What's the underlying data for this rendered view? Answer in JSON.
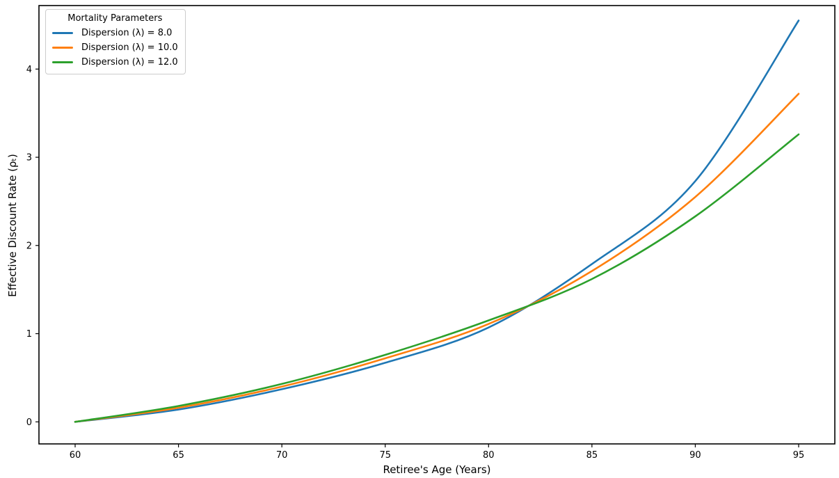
{
  "chart_data": {
    "type": "line",
    "title": "",
    "xlabel": "Retiree's Age (Years)",
    "ylabel": "Effective Discount Rate (ρₜ)",
    "xlim": [
      58.25,
      96.75
    ],
    "ylim": [
      -0.25,
      4.72
    ],
    "x_ticks": [
      60,
      65,
      70,
      75,
      80,
      85,
      90,
      95
    ],
    "y_ticks": [
      0,
      1,
      2,
      3,
      4
    ],
    "grid": false,
    "legend": {
      "title": "Mortality Parameters",
      "position": "upper-left"
    },
    "x": [
      60,
      65,
      70,
      75,
      80,
      85,
      90,
      95
    ],
    "series": [
      {
        "name": "Dispersion (λ) = 8.0",
        "color": "#1f77b4",
        "values": [
          0.0,
          0.14,
          0.37,
          0.67,
          1.07,
          1.79,
          2.73,
          4.55
        ]
      },
      {
        "name": "Dispersion (λ) = 10.0",
        "color": "#ff7f0e",
        "values": [
          0.0,
          0.16,
          0.4,
          0.72,
          1.11,
          1.71,
          2.55,
          3.72
        ]
      },
      {
        "name": "Dispersion (λ) = 12.0",
        "color": "#2ca02c",
        "values": [
          0.0,
          0.18,
          0.43,
          0.76,
          1.15,
          1.62,
          2.33,
          3.26
        ]
      }
    ],
    "annotations": {
      "crossing_point": {
        "age": 82.5,
        "value": 1.45
      }
    },
    "style": {
      "spine_color": "#000000",
      "tick_label_color": "#000000",
      "legend_border_color": "#cccccc"
    }
  }
}
